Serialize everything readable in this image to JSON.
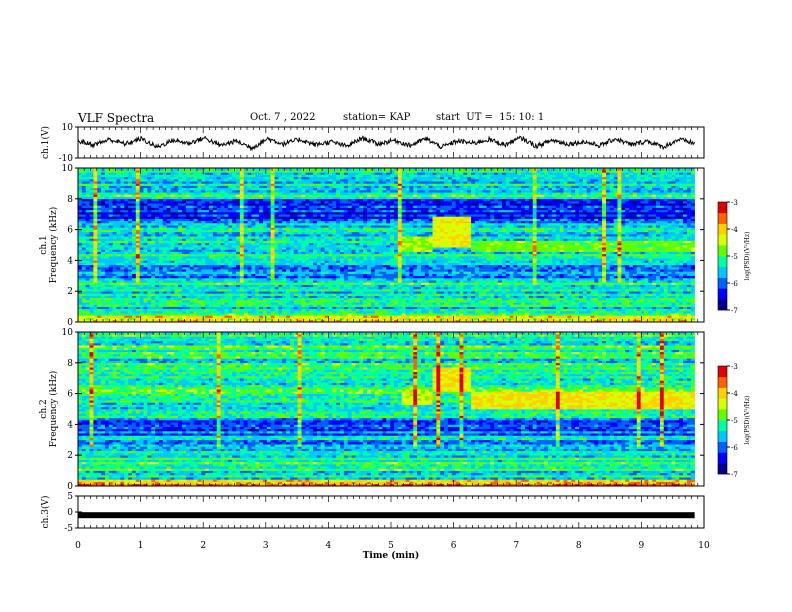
{
  "header": {
    "title": "VLF Spectra",
    "date": "Oct. 7 , 2022",
    "station": "station= KAP",
    "start": "start  UT =  15: 10: 1"
  },
  "colors": {
    "colormap": [
      "#000090",
      "#0000ff",
      "#0060ff",
      "#00c8ff",
      "#00ffa0",
      "#60ff00",
      "#d8ff00",
      "#ffd000",
      "#ff6000",
      "#e00000",
      "#ffffff"
    ],
    "waveform": "#000000",
    "axes": "#000000"
  },
  "chart_data": [
    {
      "type": "line",
      "panel": "ch1-waveform",
      "ylabel": "ch.1(V)",
      "ylim": [
        -10,
        10
      ],
      "yticks": [
        "10",
        "-10"
      ],
      "xlim": [
        0,
        10
      ],
      "series": [
        {
          "values": [
            2,
            -3,
            4,
            -2,
            5,
            -6,
            3,
            -1,
            6,
            -4,
            2,
            -7,
            5,
            -2,
            4,
            -3,
            1,
            -5,
            6,
            -2,
            3,
            -4,
            5,
            -6,
            2,
            -1,
            4,
            -3,
            6,
            -5,
            3,
            -2,
            1,
            -4,
            5,
            -3,
            2,
            -6,
            4,
            -1
          ]
        }
      ]
    },
    {
      "type": "heatmap",
      "panel": "ch1-spectrogram",
      "ylabel": "ch.1\nFrequency (kHz)",
      "ylim": [
        0,
        10
      ],
      "yticks": [
        "0",
        "2",
        "4",
        "6",
        "8",
        "10"
      ],
      "xlim": [
        0,
        9.85
      ],
      "colorbar": {
        "label": "log(PSD)(V²/Hz)",
        "range": [
          -7,
          -3
        ],
        "ticks": [
          "-3",
          "-4",
          "-5",
          "-6",
          "-7"
        ]
      },
      "bands": [
        {
          "kHz": [
            0.0,
            0.5
          ],
          "log_psd": -4.2
        },
        {
          "kHz": [
            0.5,
            2.0
          ],
          "log_psd": -5.4
        },
        {
          "kHz": [
            2.0,
            2.6
          ],
          "log_psd": -5.2
        },
        {
          "kHz": [
            2.6,
            4.0
          ],
          "log_psd": -5.8
        },
        {
          "kHz": [
            4.0,
            5.0
          ],
          "log_psd": -5.3
        },
        {
          "kHz": [
            5.0,
            6.5
          ],
          "log_psd": -5.5
        },
        {
          "kHz": [
            6.5,
            8.0
          ],
          "log_psd": -6.2
        },
        {
          "kHz": [
            8.0,
            10.0
          ],
          "log_psd": -5.3
        }
      ],
      "events": [
        {
          "t_min": [
            5.15,
            5.65
          ],
          "kHz": [
            4.6,
            5.6
          ],
          "log_psd": -4.6
        },
        {
          "t_min": [
            5.65,
            6.25
          ],
          "kHz": [
            4.8,
            6.8
          ],
          "log_psd": -4.3
        },
        {
          "t_min": [
            6.25,
            9.85
          ],
          "kHz": [
            4.6,
            5.3
          ],
          "log_psd": -4.8
        }
      ]
    },
    {
      "type": "heatmap",
      "panel": "ch2-spectrogram",
      "ylabel": "ch.2\nFrequency (kHz)",
      "ylim": [
        0,
        10
      ],
      "yticks": [
        "0",
        "2",
        "4",
        "6",
        "8",
        "10"
      ],
      "xlim": [
        0,
        9.85
      ],
      "colorbar": {
        "label": "log(PSD)(V²/Hz)",
        "range": [
          -7,
          -3
        ],
        "ticks": [
          "-3",
          "-4",
          "-5",
          "-6",
          "-7"
        ]
      },
      "bands": [
        {
          "kHz": [
            0.0,
            0.5
          ],
          "log_psd": -4.0
        },
        {
          "kHz": [
            0.5,
            2.0
          ],
          "log_psd": -5.3
        },
        {
          "kHz": [
            2.0,
            3.3
          ],
          "log_psd": -5.6
        },
        {
          "kHz": [
            3.3,
            4.4
          ],
          "log_psd": -6.1
        },
        {
          "kHz": [
            4.4,
            6.0
          ],
          "log_psd": -5.3
        },
        {
          "kHz": [
            6.0,
            8.0
          ],
          "log_psd": -5.1
        },
        {
          "kHz": [
            8.0,
            10.0
          ],
          "log_psd": -5.2
        }
      ],
      "events": [
        {
          "t_min": [
            5.15,
            5.65
          ],
          "kHz": [
            5.3,
            6.2
          ],
          "log_psd": -4.4
        },
        {
          "t_min": [
            5.65,
            6.25
          ],
          "kHz": [
            6.2,
            7.7
          ],
          "log_psd": -4.2
        },
        {
          "t_min": [
            6.25,
            9.85
          ],
          "kHz": [
            5.0,
            6.1
          ],
          "log_psd": -4.2
        }
      ]
    },
    {
      "type": "line",
      "panel": "ch3-waveform",
      "ylabel": "ch.3(V)",
      "ylim": [
        -5,
        5
      ],
      "yticks": [
        "5",
        "0",
        "-5"
      ],
      "xlim": [
        0,
        10
      ],
      "series": [
        {
          "values": [
            -1,
            -1,
            -1,
            -1,
            -1,
            -1,
            -1,
            -1,
            -1,
            -1
          ]
        }
      ]
    }
  ],
  "xaxis": {
    "label": "Time (min)",
    "ticks": [
      "0",
      "1",
      "2",
      "3",
      "4",
      "5",
      "6",
      "7",
      "8",
      "9",
      "10"
    ]
  }
}
